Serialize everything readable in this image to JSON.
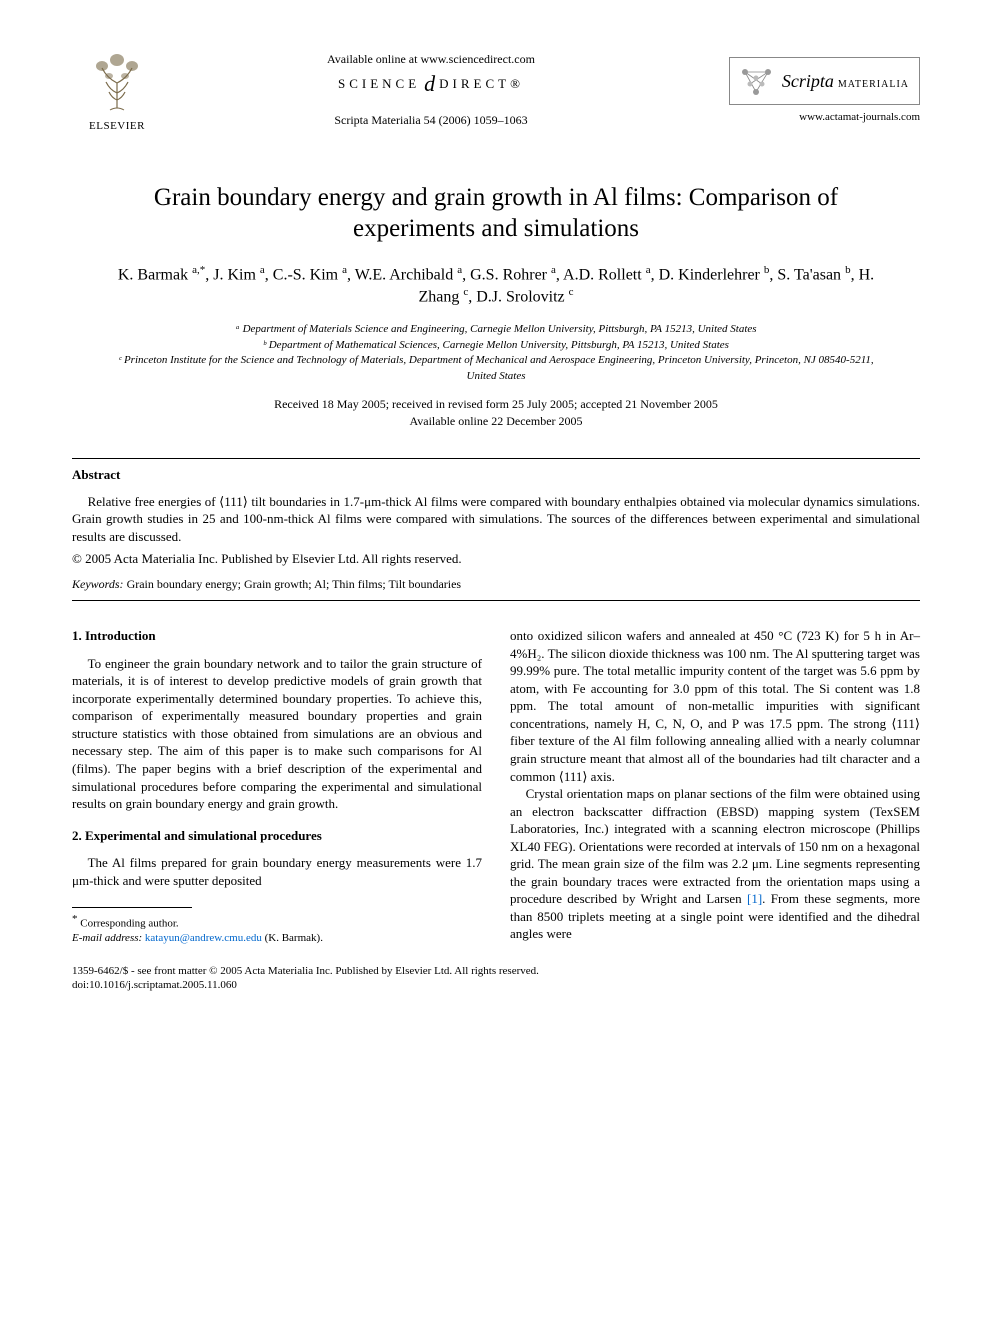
{
  "header": {
    "available_online": "Available online at www.sciencedirect.com",
    "science_direct_left": "SCIENCE",
    "science_direct_right": "DIRECT®",
    "citation": "Scripta Materialia 54 (2006) 1059–1063",
    "elsevier_label": "ELSEVIER",
    "journal_name": "Scripta",
    "journal_sub": "MATERIALIA",
    "journal_url": "www.actamat-journals.com"
  },
  "title": "Grain boundary energy and grain growth in Al films: Comparison of experiments and simulations",
  "authors_html": "K. Barmak <sup>a,*</sup>, J. Kim <sup>a</sup>, C.-S. Kim <sup>a</sup>, W.E. Archibald <sup>a</sup>, G.S. Rohrer <sup>a</sup>, A.D. Rollett <sup>a</sup>, D. Kinderlehrer <sup>b</sup>, S. Ta'asan <sup>b</sup>, H. Zhang <sup>c</sup>, D.J. Srolovitz <sup>c</sup>",
  "affiliations": [
    "ᵃ Department of Materials Science and Engineering, Carnegie Mellon University, Pittsburgh, PA 15213, United States",
    "ᵇ Department of Mathematical Sciences, Carnegie Mellon University, Pittsburgh, PA 15213, United States",
    "ᶜ Princeton Institute for the Science and Technology of Materials, Department of Mechanical and Aerospace Engineering, Princeton University, Princeton, NJ 08540-5211, United States"
  ],
  "dates_line1": "Received 18 May 2005; received in revised form 25 July 2005; accepted 21 November 2005",
  "dates_line2": "Available online 22 December 2005",
  "abstract": {
    "heading": "Abstract",
    "body": "Relative free energies of ⟨111⟩ tilt boundaries in 1.7-μm-thick Al films were compared with boundary enthalpies obtained via molecular dynamics simulations. Grain growth studies in 25 and 100-nm-thick Al films were compared with simulations. The sources of the differences between experimental and simulational results are discussed.",
    "copyright": "© 2005 Acta Materialia Inc. Published by Elsevier Ltd. All rights reserved."
  },
  "keywords": {
    "label": "Keywords:",
    "text": "Grain boundary energy; Grain growth; Al; Thin films; Tilt boundaries"
  },
  "sections": {
    "intro_head": "1. Introduction",
    "intro_body": "To engineer the grain boundary network and to tailor the grain structure of materials, it is of interest to develop predictive models of grain growth that incorporate experimentally determined boundary properties. To achieve this, comparison of experimentally measured boundary properties and grain structure statistics with those obtained from simulations are an obvious and necessary step. The aim of this paper is to make such comparisons for Al (films). The paper begins with a brief description of the experimental and simulational procedures before comparing the experimental and simulational results on grain boundary energy and grain growth.",
    "exp_head": "2. Experimental and simulational procedures",
    "exp_col1": "The Al films prepared for grain boundary energy measurements were 1.7 μm-thick and were sputter deposited",
    "exp_col2_p1": "onto oxidized silicon wafers and annealed at 450 °C (723 K) for 5 h in Ar–4%H₂. The silicon dioxide thickness was 100 nm. The Al sputtering target was 99.99% pure. The total metallic impurity content of the target was 5.6 ppm by atom, with Fe accounting for 3.0 ppm of this total. The Si content was 1.8 ppm. The total amount of non-metallic impurities with significant concentrations, namely H, C, N, O, and P was 17.5 ppm. The strong ⟨111⟩ fiber texture of the Al film following annealing allied with a nearly columnar grain structure meant that almost all of the boundaries had tilt character and a common ⟨111⟩ axis.",
    "exp_col2_p2_a": "Crystal orientation maps on planar sections of the film were obtained using an electron backscatter diffraction (EBSD) mapping system (TexSEM Laboratories, Inc.) integrated with a scanning electron microscope (Phillips XL40 FEG). Orientations were recorded at intervals of 150 nm on a hexagonal grid. The mean grain size of the film was 2.2 μm. Line segments representing the grain boundary traces were extracted from the orientation maps using a procedure described by Wright and Larsen ",
    "ref1": "[1]",
    "exp_col2_p2_b": ". From these segments, more than 8500 triplets meeting at a single point were identified and the dihedral angles were"
  },
  "footnote": {
    "corr": "Corresponding author.",
    "email_label": "E-mail address:",
    "email": "katayun@andrew.cmu.edu",
    "email_paren": "(K. Barmak)."
  },
  "footer": {
    "line1": "1359-6462/$ - see front matter © 2005 Acta Materialia Inc. Published by Elsevier Ltd. All rights reserved.",
    "line2": "doi:10.1016/j.scriptamat.2005.11.060"
  },
  "colors": {
    "text": "#000000",
    "link": "#0066cc",
    "background": "#ffffff",
    "rule": "#000000"
  }
}
